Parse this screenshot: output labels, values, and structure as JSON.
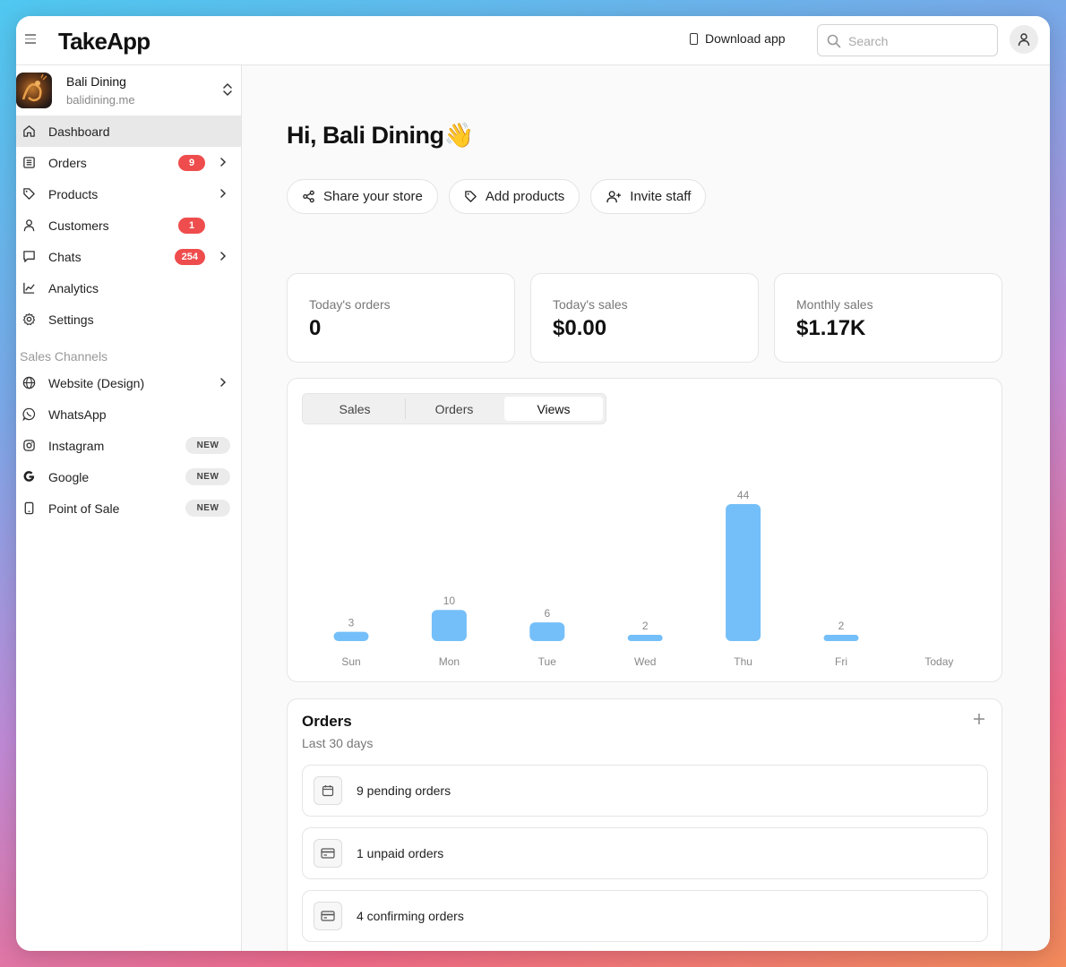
{
  "header": {
    "logo": "TakeApp",
    "download_label": "Download app",
    "search_placeholder": "Search"
  },
  "store": {
    "name": "Bali Dining",
    "url": "balidining.me"
  },
  "sidebar": {
    "items": [
      {
        "label": "Dashboard",
        "icon": "home-icon",
        "active": true
      },
      {
        "label": "Orders",
        "icon": "orders-icon",
        "badge": "9",
        "chevron": true
      },
      {
        "label": "Products",
        "icon": "tag-icon",
        "chevron": true
      },
      {
        "label": "Customers",
        "icon": "user-icon",
        "badge": "1"
      },
      {
        "label": "Chats",
        "icon": "chat-icon",
        "badge": "254",
        "chevron": true
      },
      {
        "label": "Analytics",
        "icon": "analytics-icon"
      },
      {
        "label": "Settings",
        "icon": "gear-icon"
      }
    ],
    "section_title": "Sales Channels",
    "channels": [
      {
        "label": "Website (Design)",
        "icon": "globe-icon",
        "chevron": true
      },
      {
        "label": "WhatsApp",
        "icon": "whatsapp-icon"
      },
      {
        "label": "Instagram",
        "icon": "instagram-icon",
        "tag": "NEW"
      },
      {
        "label": "Google",
        "icon": "google-icon",
        "tag": "NEW"
      },
      {
        "label": "Point of Sale",
        "icon": "phone-icon",
        "tag": "NEW"
      }
    ]
  },
  "main": {
    "greeting": "Hi, Bali Dining👋",
    "actions": [
      {
        "label": "Share your store",
        "icon": "share-icon"
      },
      {
        "label": "Add products",
        "icon": "tag-icon"
      },
      {
        "label": "Invite staff",
        "icon": "user-plus-icon"
      }
    ],
    "stats": [
      {
        "label": "Today's orders",
        "value": "0"
      },
      {
        "label": "Today's sales",
        "value": "$0.00"
      },
      {
        "label": "Monthly sales",
        "value": "$1.17K"
      }
    ],
    "tabs": [
      "Sales",
      "Orders",
      "Views"
    ],
    "selected_tab": "Views",
    "orders": {
      "title": "Orders",
      "subtitle": "Last 30 days",
      "rows": [
        {
          "label": "9 pending orders",
          "icon": "calendar-icon"
        },
        {
          "label": "1 unpaid orders",
          "icon": "card-icon"
        },
        {
          "label": "4 confirming orders",
          "icon": "card-icon"
        }
      ]
    }
  },
  "colors": {
    "bar": "#74bff9",
    "badge": "#ef4d4d",
    "active_nav": "#e8e8e8"
  },
  "chart_data": {
    "type": "bar",
    "categories": [
      "Sun",
      "Mon",
      "Tue",
      "Wed",
      "Thu",
      "Fri",
      "Today"
    ],
    "values": [
      3,
      10,
      6,
      2,
      44,
      2,
      null
    ],
    "title": "",
    "xlabel": "",
    "ylabel": "",
    "grid": false
  }
}
